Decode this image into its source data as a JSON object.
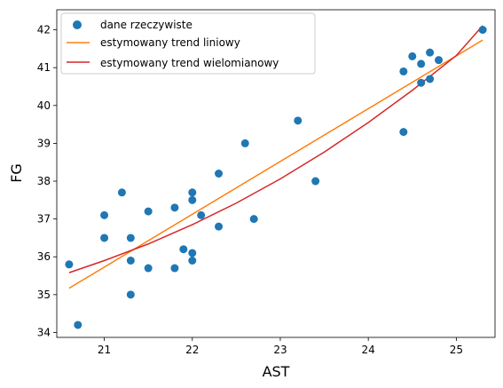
{
  "chart_data": {
    "type": "scatter",
    "xlabel": "AST",
    "ylabel": "FG",
    "xlim": [
      20.46,
      25.44
    ],
    "ylim": [
      33.87,
      42.53
    ],
    "x_ticks": [
      21,
      22,
      23,
      24,
      25
    ],
    "y_ticks": [
      34,
      35,
      36,
      37,
      38,
      39,
      40,
      41,
      42
    ],
    "grid": false,
    "legend": "upper-left",
    "series": [
      {
        "name": "dane rzeczywiste",
        "kind": "scatter",
        "color": "#1f77b4",
        "points": [
          [
            20.6,
            35.8
          ],
          [
            20.7,
            34.2
          ],
          [
            21.0,
            37.1
          ],
          [
            21.0,
            36.5
          ],
          [
            21.2,
            37.7
          ],
          [
            21.3,
            36.5
          ],
          [
            21.3,
            35.9
          ],
          [
            21.3,
            35.0
          ],
          [
            21.5,
            37.2
          ],
          [
            21.5,
            35.7
          ],
          [
            21.8,
            37.3
          ],
          [
            21.8,
            35.7
          ],
          [
            21.9,
            36.2
          ],
          [
            22.0,
            37.7
          ],
          [
            22.0,
            37.5
          ],
          [
            22.0,
            36.1
          ],
          [
            22.0,
            35.9
          ],
          [
            22.1,
            37.1
          ],
          [
            22.3,
            38.2
          ],
          [
            22.3,
            36.8
          ],
          [
            22.6,
            39.0
          ],
          [
            22.7,
            37.0
          ],
          [
            23.2,
            39.6
          ],
          [
            23.4,
            38.0
          ],
          [
            24.4,
            40.9
          ],
          [
            24.4,
            39.3
          ],
          [
            24.5,
            41.3
          ],
          [
            24.6,
            41.1
          ],
          [
            24.6,
            40.6
          ],
          [
            24.7,
            41.4
          ],
          [
            24.7,
            40.7
          ],
          [
            24.8,
            41.2
          ],
          [
            25.3,
            42.0
          ]
        ]
      },
      {
        "name": "estymowany trend liniowy",
        "kind": "line",
        "color": "#ff7f0e",
        "points": [
          [
            20.6,
            35.17
          ],
          [
            25.3,
            41.73
          ]
        ]
      },
      {
        "name": "estymowany trend wielomianowy",
        "kind": "line",
        "color": "#d62728",
        "points": [
          [
            20.6,
            35.58
          ],
          [
            21.0,
            35.9
          ],
          [
            21.5,
            36.34
          ],
          [
            22.0,
            36.85
          ],
          [
            22.5,
            37.42
          ],
          [
            23.0,
            38.06
          ],
          [
            23.5,
            38.77
          ],
          [
            24.0,
            39.55
          ],
          [
            24.5,
            40.4
          ],
          [
            25.0,
            41.32
          ],
          [
            25.3,
            42.11
          ]
        ]
      }
    ]
  }
}
